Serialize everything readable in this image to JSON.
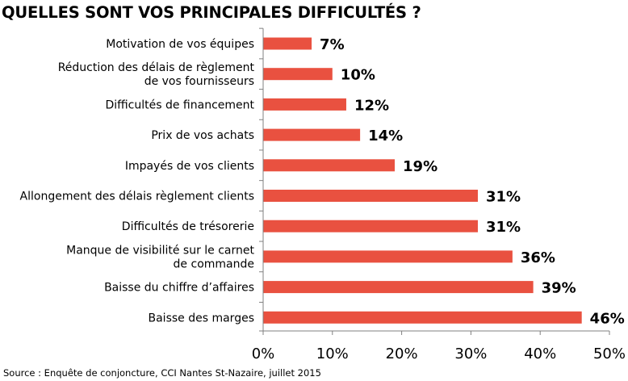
{
  "chart_title": "QUELLES SONT VOS PRINCIPALES DIFFICULTÉS ?",
  "source": "Source : Enquête de conjoncture, CCI Nantes St-Nazaire, juillet 2015",
  "colors": {
    "bar": "#E95140",
    "axis": "#808080",
    "text": "#000000"
  },
  "chart_data": {
    "type": "bar",
    "orientation": "horizontal",
    "title": "QUELLES SONT VOS PRINCIPALES DIFFICULTÉS ?",
    "categories": [
      "Motivation de vos équipes",
      "Réduction des délais de règlement de vos fournisseurs",
      "Difficultés de financement",
      "Prix de vos achats",
      "Impayés de vos clients",
      "Allongement des délais règlement clients",
      "Difficultés de trésorerie",
      "Manque de visibilité sur le carnet de commande",
      "Baisse du chiffre d’affaires",
      "Baisse des marges"
    ],
    "category_label_lines": [
      [
        "Motivation de vos équipes"
      ],
      [
        "Réduction des délais de règlement",
        "de vos fournisseurs"
      ],
      [
        "Difficultés de financement"
      ],
      [
        "Prix de vos achats"
      ],
      [
        "Impayés de vos clients"
      ],
      [
        "Allongement des délais règlement clients"
      ],
      [
        "Difficultés de trésorerie"
      ],
      [
        "Manque de visibilité sur le carnet",
        "de commande"
      ],
      [
        "Baisse du chiffre d’affaires"
      ],
      [
        "Baisse des marges"
      ]
    ],
    "values": [
      7,
      10,
      12,
      14,
      19,
      31,
      31,
      36,
      39,
      46
    ],
    "value_labels": [
      "7%",
      "10%",
      "12%",
      "14%",
      "19%",
      "31%",
      "31%",
      "36%",
      "39%",
      "46%"
    ],
    "xlim": [
      0,
      50
    ],
    "xticks": [
      0,
      10,
      20,
      30,
      40,
      50
    ],
    "xtick_labels": [
      "0%",
      "10%",
      "20%",
      "30%",
      "40%",
      "50%"
    ],
    "xlabel": "",
    "ylabel": "",
    "grid": false,
    "legend": "none"
  }
}
